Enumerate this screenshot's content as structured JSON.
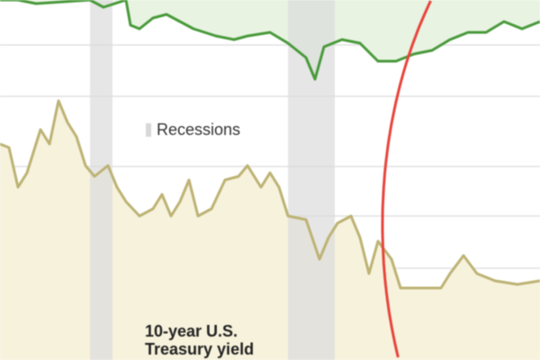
{
  "chart_data": {
    "type": "line",
    "title": "",
    "xlabel": "",
    "ylabel": "",
    "grid": true,
    "legend": {
      "recessions_label": "Recessions",
      "placement": "center-left"
    },
    "recessions": [
      [
        100,
        125
      ],
      [
        320,
        372
      ]
    ],
    "annotation": "red circle highlighting right portion of both series",
    "series": [
      {
        "name": "",
        "color": "#4a9a3c",
        "fill": "#e8f3e2",
        "x": [
          0,
          20,
          40,
          100,
          115,
          140,
          145,
          155,
          170,
          185,
          200,
          215,
          240,
          260,
          275,
          300,
          320,
          340,
          350,
          360,
          380,
          400,
          420,
          440,
          460,
          480,
          500,
          520,
          540,
          560,
          580,
          600
        ],
        "y": [
          101,
          100,
          99,
          100,
          98,
          100,
          93,
          92,
          95,
          96,
          94,
          92,
          90,
          89,
          90,
          91,
          88,
          84,
          78,
          87,
          89,
          88,
          83,
          83,
          85,
          86,
          89,
          91,
          91,
          94,
          92,
          94
        ]
      },
      {
        "name": "10-year U.S. Treasury yield",
        "color": "#bdb374",
        "fill": "#f7f2dc",
        "x": [
          0,
          10,
          20,
          30,
          45,
          55,
          65,
          75,
          85,
          95,
          105,
          120,
          130,
          140,
          155,
          170,
          180,
          190,
          200,
          210,
          220,
          235,
          250,
          265,
          275,
          290,
          300,
          310,
          320,
          340,
          355,
          365,
          375,
          390,
          400,
          410,
          420,
          435,
          445,
          460,
          490,
          500,
          515,
          530,
          550,
          575,
          600
        ],
        "y": [
          60,
          59,
          48,
          52,
          64,
          60,
          72,
          66,
          62,
          54,
          51,
          54,
          48,
          44,
          40,
          42,
          46,
          40,
          44,
          50,
          40,
          42,
          50,
          51,
          54,
          48,
          52,
          48,
          40,
          39,
          28,
          34,
          38,
          40,
          34,
          24,
          33,
          28,
          20,
          20,
          20,
          24,
          29,
          24,
          22,
          21,
          22
        ]
      }
    ],
    "label_line1": "10-year U.S.",
    "label_line2": "Treasury yield",
    "colors": {
      "highlight": "#e8453c",
      "recession": "#dcdcdc",
      "grid": "#e2e2e2"
    }
  }
}
